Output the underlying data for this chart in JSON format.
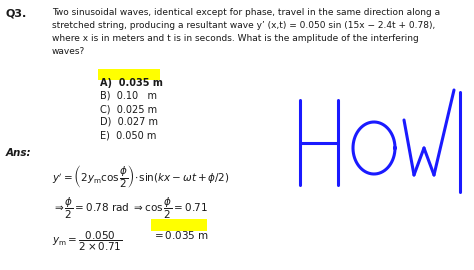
{
  "background_color": "#ffffff",
  "q_label": "Q3.",
  "question_lines": [
    "Two sinusoidal waves, identical except for phase, travel in the same direction along a",
    "stretched string, producing a resultant wave y’ (x,t) = 0.050 sin (15x − 2.4t + 0.78),",
    "where x is in meters and t is in seconds. What is the amplitude of the interfering",
    "waves?"
  ],
  "choices": [
    {
      "label": "A)  0.035 m",
      "highlight": true
    },
    {
      "label": "B)  0.10   m",
      "highlight": false
    },
    {
      "label": "C)  0.025 m",
      "highlight": false
    },
    {
      "label": "D)  0.027 m",
      "highlight": false
    },
    {
      "label": "E)  0.050 m",
      "highlight": false
    }
  ],
  "ans_label": "Ans:",
  "highlight_yellow": "#ffff00",
  "text_color": "#1a1a1a",
  "blue_color": "#1a1aff",
  "figsize": [
    4.74,
    2.7
  ],
  "dpi": 100
}
